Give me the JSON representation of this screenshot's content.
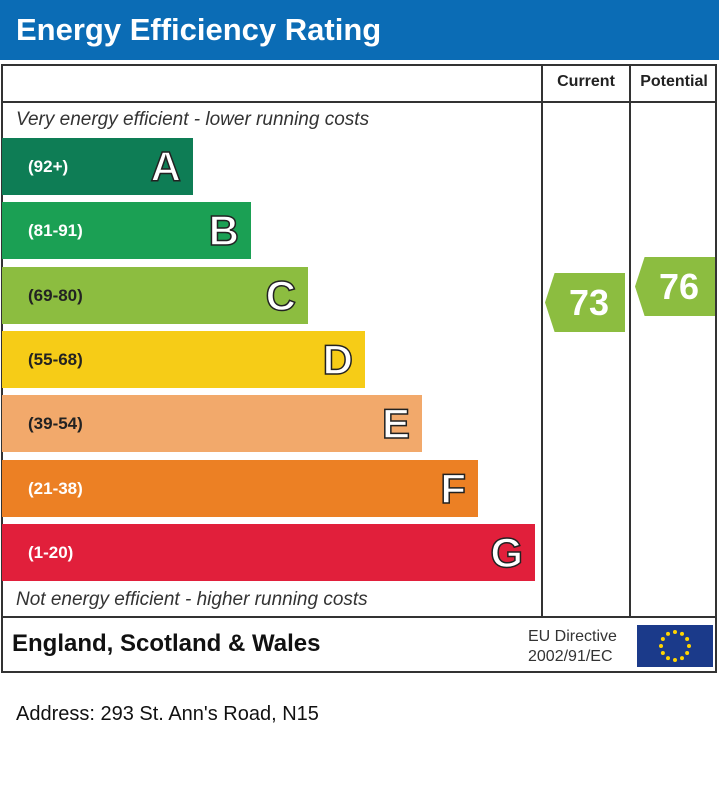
{
  "title": "Energy Efficiency Rating",
  "columns": {
    "current": "Current",
    "potential": "Potential"
  },
  "top_note": "Very energy efficient - lower running costs",
  "bottom_note": "Not energy efficient - higher running costs",
  "bands": [
    {
      "letter": "A",
      "range": "(92+)",
      "color": "#0e7d55"
    },
    {
      "letter": "B",
      "range": "(81-91)",
      "color": "#1ba054"
    },
    {
      "letter": "C",
      "range": "(69-80)",
      "color": "#8cbd40"
    },
    {
      "letter": "D",
      "range": "(55-68)",
      "color": "#f6cc17"
    },
    {
      "letter": "E",
      "range": "(39-54)",
      "color": "#f2a96b"
    },
    {
      "letter": "F",
      "range": "(21-38)",
      "color": "#ec8024"
    },
    {
      "letter": "G",
      "range": "(1-20)",
      "color": "#e11f3b"
    }
  ],
  "current": {
    "value": "73",
    "band": "C",
    "color": "#8cbd40"
  },
  "potential": {
    "value": "76",
    "band": "C",
    "color": "#8cbd40"
  },
  "footer": {
    "region": "England, Scotland & Wales",
    "directive_line1": "EU Directive",
    "directive_line2": "2002/91/EC",
    "flag": "eu-flag-icon"
  },
  "address": "Address: 293 St. Ann's Road, N15"
}
